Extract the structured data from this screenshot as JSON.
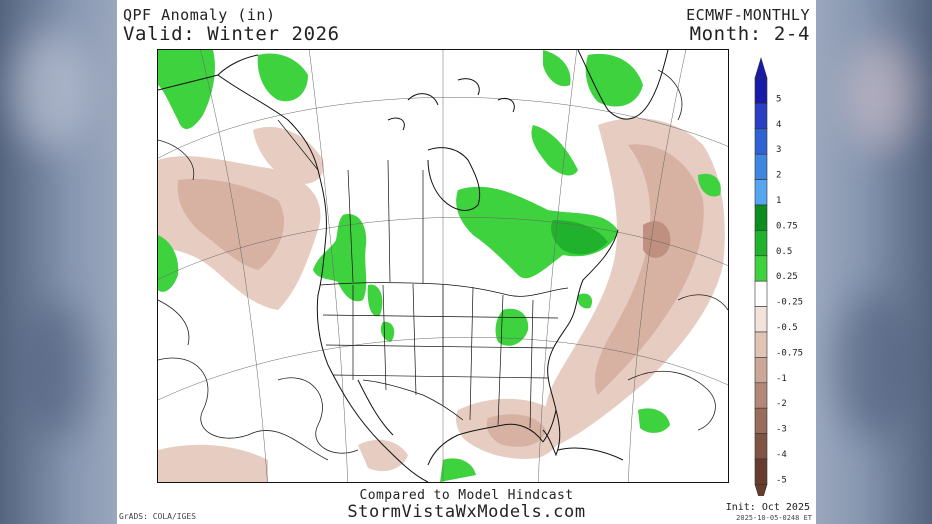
{
  "header": {
    "title": "QPF Anomaly (in)",
    "valid": "Valid: Winter 2026",
    "model": "ECMWF-MONTHLY",
    "month": "Month: 2-4"
  },
  "footer": {
    "compared": "Compared to Model Hindcast",
    "site": "StormVistaWxModels.com",
    "init": "Init: Oct 2025",
    "timestamp": "2025-10-05-0248 ET",
    "credit": "GrADS: COLA/IGES"
  },
  "legend": {
    "entries": [
      {
        "label": "5",
        "color": "#1a1aa8"
      },
      {
        "label": "4",
        "color": "#2a3fc4"
      },
      {
        "label": "3",
        "color": "#2f62d2"
      },
      {
        "label": "2",
        "color": "#3f86e0"
      },
      {
        "label": "1",
        "color": "#56a6ef"
      },
      {
        "label": "0.75",
        "color": "#0d8c1f"
      },
      {
        "label": "0.5",
        "color": "#20b22c"
      },
      {
        "label": "0.25",
        "color": "#3fd23f"
      },
      {
        "label": "-0.25",
        "color": "#ffffff"
      },
      {
        "label": "-0.5",
        "color": "#f3e2da"
      },
      {
        "label": "-0.75",
        "color": "#e2c4b5"
      },
      {
        "label": "-1",
        "color": "#cca696"
      },
      {
        "label": "-2",
        "color": "#b38878"
      },
      {
        "label": "-3",
        "color": "#9a6c5c"
      },
      {
        "label": "-4",
        "color": "#805444"
      },
      {
        "label": "-5",
        "color": "#663c2e"
      }
    ]
  },
  "colors": {
    "wet_light": "#3fd23f",
    "dry_light": "#e7cdc1",
    "dry_mid": "#d7b2a3",
    "dry_dark": "#bf907f"
  }
}
